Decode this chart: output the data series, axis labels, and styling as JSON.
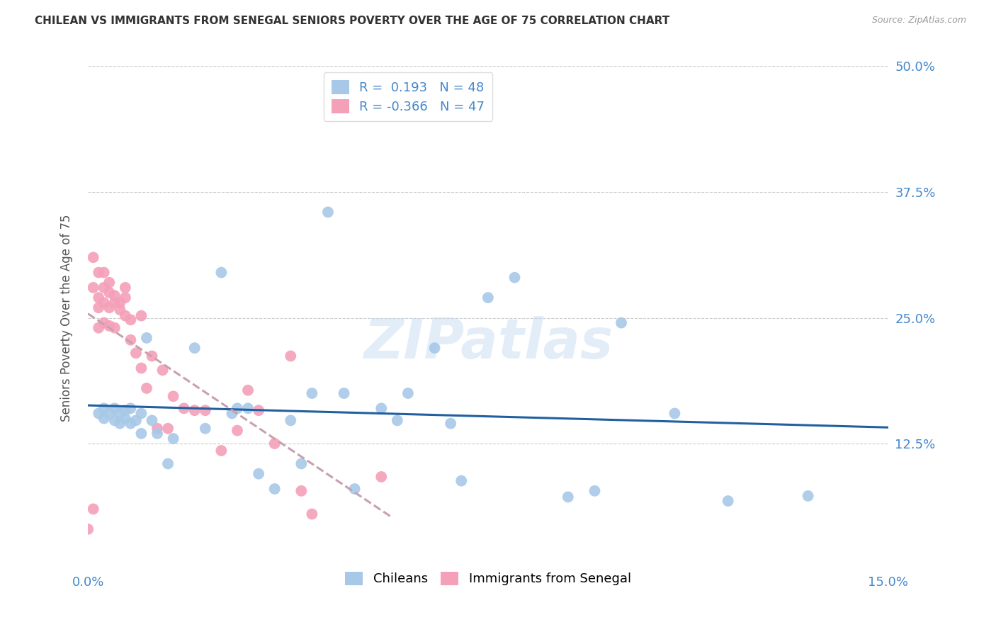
{
  "title": "CHILEAN VS IMMIGRANTS FROM SENEGAL SENIORS POVERTY OVER THE AGE OF 75 CORRELATION CHART",
  "source": "Source: ZipAtlas.com",
  "ylabel": "Seniors Poverty Over the Age of 75",
  "xlim": [
    0.0,
    0.15
  ],
  "ylim": [
    0.0,
    0.5
  ],
  "chilean_R": 0.193,
  "chilean_N": 48,
  "senegal_R": -0.366,
  "senegal_N": 47,
  "chilean_color": "#a8c8e8",
  "senegal_color": "#f4a0b8",
  "chilean_line_color": "#2060a0",
  "senegal_line_color": "#c8a0b0",
  "background_color": "#ffffff",
  "watermark": "ZIPatlas",
  "grid_color": "#cccccc",
  "tick_color": "#4488cc",
  "title_color": "#333333",
  "source_color": "#999999",
  "ylabel_color": "#555555",
  "chilean_x": [
    0.002,
    0.003,
    0.003,
    0.004,
    0.005,
    0.005,
    0.006,
    0.006,
    0.007,
    0.007,
    0.008,
    0.008,
    0.009,
    0.01,
    0.01,
    0.011,
    0.012,
    0.013,
    0.015,
    0.016,
    0.02,
    0.022,
    0.025,
    0.027,
    0.028,
    0.03,
    0.032,
    0.035,
    0.038,
    0.04,
    0.042,
    0.045,
    0.048,
    0.05,
    0.055,
    0.058,
    0.06,
    0.065,
    0.068,
    0.07,
    0.075,
    0.08,
    0.09,
    0.095,
    0.1,
    0.11,
    0.12,
    0.135
  ],
  "chilean_y": [
    0.155,
    0.16,
    0.15,
    0.155,
    0.16,
    0.148,
    0.155,
    0.145,
    0.158,
    0.15,
    0.145,
    0.16,
    0.148,
    0.155,
    0.135,
    0.23,
    0.148,
    0.135,
    0.105,
    0.13,
    0.22,
    0.14,
    0.295,
    0.155,
    0.16,
    0.16,
    0.095,
    0.08,
    0.148,
    0.105,
    0.175,
    0.355,
    0.175,
    0.08,
    0.16,
    0.148,
    0.175,
    0.22,
    0.145,
    0.088,
    0.27,
    0.29,
    0.072,
    0.078,
    0.245,
    0.155,
    0.068,
    0.073
  ],
  "senegal_x": [
    0.0,
    0.001,
    0.001,
    0.001,
    0.002,
    0.002,
    0.002,
    0.002,
    0.003,
    0.003,
    0.003,
    0.003,
    0.004,
    0.004,
    0.004,
    0.004,
    0.005,
    0.005,
    0.005,
    0.006,
    0.006,
    0.007,
    0.007,
    0.007,
    0.008,
    0.008,
    0.009,
    0.01,
    0.01,
    0.011,
    0.012,
    0.013,
    0.014,
    0.015,
    0.016,
    0.018,
    0.02,
    0.022,
    0.025,
    0.028,
    0.03,
    0.032,
    0.035,
    0.038,
    0.04,
    0.042,
    0.055
  ],
  "senegal_y": [
    0.04,
    0.31,
    0.28,
    0.06,
    0.295,
    0.27,
    0.26,
    0.24,
    0.245,
    0.28,
    0.265,
    0.295,
    0.26,
    0.275,
    0.242,
    0.285,
    0.272,
    0.24,
    0.265,
    0.258,
    0.265,
    0.252,
    0.28,
    0.27,
    0.248,
    0.228,
    0.215,
    0.2,
    0.252,
    0.18,
    0.212,
    0.14,
    0.198,
    0.14,
    0.172,
    0.16,
    0.158,
    0.158,
    0.118,
    0.138,
    0.178,
    0.158,
    0.125,
    0.212,
    0.078,
    0.055,
    0.092
  ]
}
